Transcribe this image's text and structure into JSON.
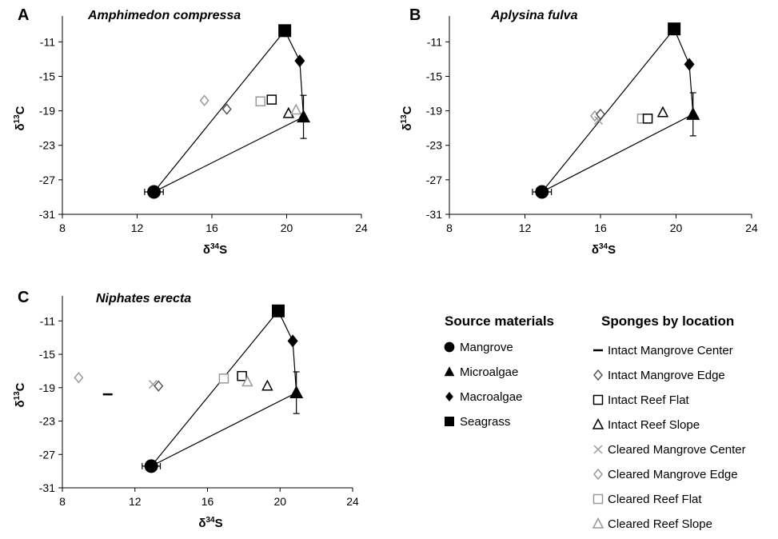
{
  "chart_data": [
    {
      "type": "scatter",
      "panel": "A",
      "species": "Amphimedon compressa",
      "xlabel": "δ34S",
      "ylabel": "δ13C",
      "xlim": [
        8,
        24
      ],
      "ylim": [
        -31,
        -8
      ],
      "xticks": [
        8,
        12,
        16,
        20,
        24
      ],
      "yticks": [
        -11,
        -15,
        -19,
        -23,
        -27,
        -31
      ],
      "sources": [
        {
          "name": "Seagrass",
          "x": 19.9,
          "y": -9.7
        },
        {
          "name": "Macroalgae",
          "x": 20.7,
          "y": -13.2
        },
        {
          "name": "Microalgae",
          "x": 20.9,
          "y": -19.7,
          "yerr": 2.5
        },
        {
          "name": "Mangrove",
          "x": 12.9,
          "y": -28.4,
          "xerr": 0.5
        }
      ],
      "sponges": [
        {
          "name": "Cleared Mangrove Edge",
          "x": 15.6,
          "y": -17.8
        },
        {
          "name": "Intact Mangrove Edge",
          "x": 16.8,
          "y": -18.8
        },
        {
          "name": "Cleared Reef Flat",
          "x": 18.6,
          "y": -17.9
        },
        {
          "name": "Intact Reef Flat",
          "x": 19.2,
          "y": -17.7
        },
        {
          "name": "Intact Reef Slope",
          "x": 20.1,
          "y": -19.3
        },
        {
          "name": "Cleared Reef Slope",
          "x": 20.5,
          "y": -18.9
        }
      ]
    },
    {
      "type": "scatter",
      "panel": "B",
      "species": "Aplysina fulva",
      "xlabel": "δ34S",
      "ylabel": "δ13C",
      "xlim": [
        8,
        24
      ],
      "ylim": [
        -31,
        -8
      ],
      "xticks": [
        8,
        12,
        16,
        20,
        24
      ],
      "yticks": [
        -11,
        -15,
        -19,
        -23,
        -27,
        -31
      ],
      "sources": [
        {
          "name": "Seagrass",
          "x": 19.9,
          "y": -9.5
        },
        {
          "name": "Macroalgae",
          "x": 20.7,
          "y": -13.6
        },
        {
          "name": "Microalgae",
          "x": 20.9,
          "y": -19.4,
          "yerr": 2.5
        },
        {
          "name": "Mangrove",
          "x": 12.9,
          "y": -28.4,
          "xerr": 0.5
        }
      ],
      "sponges": [
        {
          "name": "Cleared Mangrove Edge",
          "x": 15.7,
          "y": -19.6
        },
        {
          "name": "Cleared Mangrove Center",
          "x": 15.9,
          "y": -20.1
        },
        {
          "name": "Intact Mangrove Edge",
          "x": 16.0,
          "y": -19.4
        },
        {
          "name": "Cleared Reef Flat",
          "x": 18.2,
          "y": -19.9
        },
        {
          "name": "Intact Reef Flat",
          "x": 18.5,
          "y": -19.9
        },
        {
          "name": "Intact Reef Slope",
          "x": 19.3,
          "y": -19.2
        }
      ]
    },
    {
      "type": "scatter",
      "panel": "C",
      "species": "Niphates erecta",
      "xlabel": "δ34S",
      "ylabel": "δ13C",
      "xlim": [
        8,
        24
      ],
      "ylim": [
        -31,
        -8
      ],
      "xticks": [
        8,
        12,
        16,
        20,
        24
      ],
      "yticks": [
        -11,
        -15,
        -19,
        -23,
        -27,
        -31
      ],
      "sources": [
        {
          "name": "Seagrass",
          "x": 19.9,
          "y": -9.8
        },
        {
          "name": "Macroalgae",
          "x": 20.7,
          "y": -13.4
        },
        {
          "name": "Microalgae",
          "x": 20.9,
          "y": -19.6,
          "yerr": 2.5
        },
        {
          "name": "Mangrove",
          "x": 12.9,
          "y": -28.4,
          "xerr": 0.5
        }
      ],
      "sponges": [
        {
          "name": "Cleared Mangrove Edge",
          "x": 8.9,
          "y": -17.8
        },
        {
          "name": "Intact Mangrove Center",
          "x": 10.5,
          "y": -19.8
        },
        {
          "name": "Cleared Mangrove Center",
          "x": 13.0,
          "y": -18.6
        },
        {
          "name": "Intact Mangrove Edge",
          "x": 13.3,
          "y": -18.8
        },
        {
          "name": "Cleared Reef Flat",
          "x": 16.9,
          "y": -17.9
        },
        {
          "name": "Intact Reef Flat",
          "x": 17.9,
          "y": -17.6
        },
        {
          "name": "Cleared Reef Slope",
          "x": 18.2,
          "y": -18.3
        },
        {
          "name": "Intact Reef Slope",
          "x": 19.3,
          "y": -18.8
        }
      ]
    }
  ],
  "legend": {
    "source_title": "Source materials",
    "source_items": [
      {
        "label": "Mangrove",
        "marker": "circle"
      },
      {
        "label": "Microalgae",
        "marker": "triangle"
      },
      {
        "label": "Macroalgae",
        "marker": "diamond"
      },
      {
        "label": "Seagrass",
        "marker": "square"
      }
    ],
    "sponge_title": "Sponges by location",
    "sponge_items": [
      {
        "label": "Intact Mangrove Center",
        "marker": "dash",
        "color": "#000000"
      },
      {
        "label": "Intact Mangrove Edge",
        "marker": "diamond-open",
        "color": "#555555"
      },
      {
        "label": "Intact Reef Flat",
        "marker": "square-open",
        "color": "#000000"
      },
      {
        "label": "Intact Reef Slope",
        "marker": "triangle-open",
        "color": "#000000"
      },
      {
        "label": "Cleared Mangrove Center",
        "marker": "x",
        "color": "#999999"
      },
      {
        "label": "Cleared Mangrove Edge",
        "marker": "diamond-open",
        "color": "#999999"
      },
      {
        "label": "Cleared Reef Flat",
        "marker": "square-open",
        "color": "#999999"
      },
      {
        "label": "Cleared Reef Slope",
        "marker": "triangle-open",
        "color": "#999999"
      }
    ]
  }
}
